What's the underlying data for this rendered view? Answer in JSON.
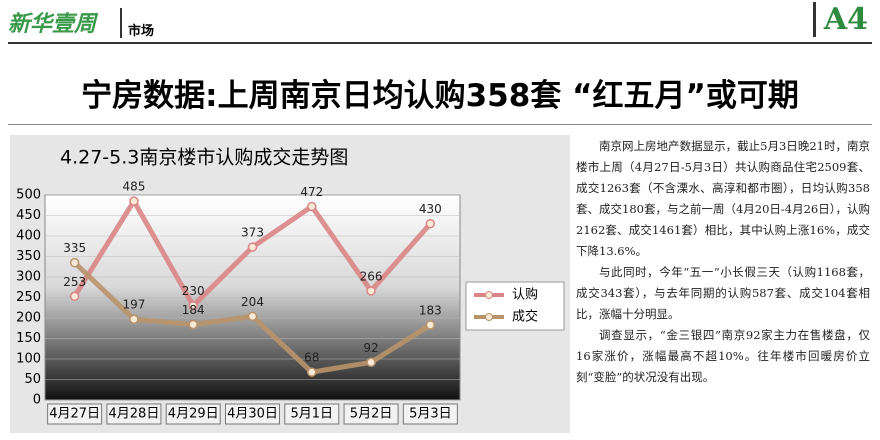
{
  "header": {
    "logo": "新华壹周",
    "section": "市场",
    "page": "A4"
  },
  "headline": "宁房数据:上周南京日均认购358套 “红五月”或可期",
  "chart_data": {
    "type": "line",
    "title": "4.27-5.3南京楼市认购成交走势图",
    "categories": [
      "4月27日",
      "4月28日",
      "4月29日",
      "4月30日",
      "5月1日",
      "5月2日",
      "5月3日"
    ],
    "series": [
      {
        "name": "认购",
        "color": "#d98585",
        "values": [
          253,
          485,
          230,
          373,
          472,
          266,
          430
        ]
      },
      {
        "name": "成交",
        "color": "#b8936a",
        "values": [
          335,
          197,
          184,
          204,
          68,
          92,
          183
        ]
      }
    ],
    "ylim": [
      0,
      500
    ],
    "yticks": [
      0,
      50,
      100,
      150,
      200,
      250,
      300,
      350,
      400,
      450,
      500
    ],
    "grid": true,
    "legend": "right"
  },
  "article": {
    "paragraphs": [
      "南京网上房地产数据显示，截止5月3日晚21时，南京楼市上周（4月27日-5月3日）共认购商品住宅2509套、成交1263套（不含溧水、高淳和都市圈），日均认购358套、成交180套，与之前一周（4月20日-4月26日），认购2162套、成交1461套）相比，其中认购上涨16%，成交下降13.6%。",
      "与此同时，今年“五一”小长假三天（认购1168套，成交343套），与去年同期的认购587套、成交104套相比，涨幅十分明显。",
      "调查显示，“金三银四”南京92家主力在售楼盘，仅16家涨价，涨幅最高不超10%。往年楼市回暖房价立刻“变脸”的状况没有出现。"
    ]
  }
}
